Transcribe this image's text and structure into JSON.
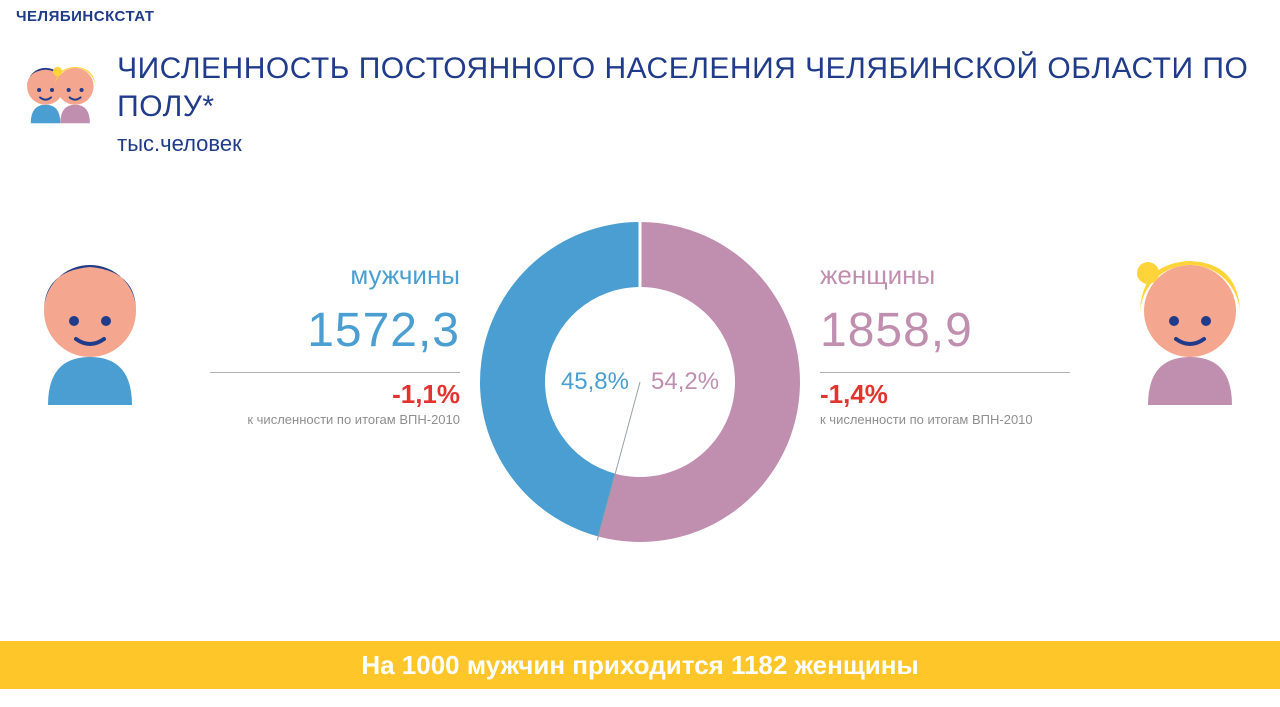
{
  "colors": {
    "navy": "#1f3b8a",
    "blue": "#4a9ed1",
    "pink": "#c08fb0",
    "red": "#e3332e",
    "gray": "#8f8f8f",
    "yellow": "#ffc629",
    "peach": "#f4a68e",
    "hair_yellow": "#ffd43b",
    "white": "#ffffff",
    "eye": "#1f3b8a",
    "bg": "#ffffff"
  },
  "org": "ЧЕЛЯБИНСКСТАТ",
  "header": {
    "title": "ЧИСЛЕННОСТЬ ПОСТОЯННОГО НАСЕЛЕНИЯ ЧЕЛЯБИНСКОЙ ОБЛАСТИ ПО ПОЛУ*",
    "subtitle": "тыс.человек"
  },
  "donut": {
    "type": "donut",
    "outer_r": 160,
    "inner_r": 95,
    "background_color": "#ffffff",
    "slices": [
      {
        "key": "men",
        "pct": 45.8,
        "label": "45,8%",
        "color": "#4a9ed1"
      },
      {
        "key": "women",
        "pct": 54.2,
        "label": "54,2%",
        "color": "#c08fb0"
      }
    ],
    "needle": {
      "angle_deg_from_top": 195.12,
      "color": "#9aa0a6",
      "width": 1
    },
    "label_fontsize": 24
  },
  "men": {
    "label": "мужчины",
    "value": "1572,3",
    "delta": "-1,1%",
    "note": "к численности по итогам ВПН-2010",
    "label_color": "#4a9ed1",
    "value_color": "#4a9ed1",
    "delta_color": "#e3332e",
    "note_color": "#8f8f8f"
  },
  "women": {
    "label": "женщины",
    "value": "1858,9",
    "delta": "-1,4%",
    "note": "к численности по итогам ВПН-2010",
    "label_color": "#c08fb0",
    "value_color": "#c08fb0",
    "delta_color": "#e3332e",
    "note_color": "#8f8f8f"
  },
  "footer": {
    "text": "На 1000 мужчин приходится 1182 женщины",
    "bg": "#ffc629",
    "color": "#ffffff",
    "fontsize": 26
  }
}
